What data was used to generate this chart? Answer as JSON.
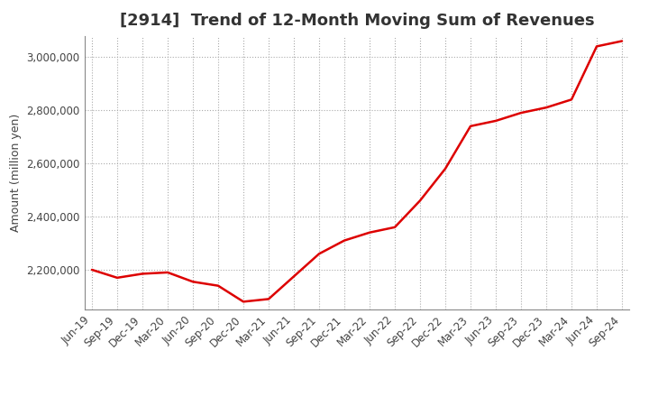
{
  "title": "[2914]  Trend of 12-Month Moving Sum of Revenues",
  "ylabel": "Amount (million yen)",
  "background_color": "#ffffff",
  "grid_color": "#aaaaaa",
  "line_color": "#dd0000",
  "x_labels": [
    "Jun-19",
    "Sep-19",
    "Dec-19",
    "Mar-20",
    "Jun-20",
    "Sep-20",
    "Dec-20",
    "Mar-21",
    "Jun-21",
    "Sep-21",
    "Dec-21",
    "Mar-22",
    "Jun-22",
    "Sep-22",
    "Dec-22",
    "Mar-23",
    "Jun-23",
    "Sep-23",
    "Dec-23",
    "Mar-24",
    "Jun-24",
    "Sep-24"
  ],
  "y_values": [
    2200000,
    2170000,
    2185000,
    2190000,
    2155000,
    2140000,
    2080000,
    2090000,
    2175000,
    2260000,
    2310000,
    2340000,
    2360000,
    2460000,
    2580000,
    2740000,
    2760000,
    2790000,
    2810000,
    2840000,
    3040000,
    3060000
  ],
  "ylim_min": 2050000,
  "ylim_max": 3080000,
  "yticks": [
    2200000,
    2400000,
    2600000,
    2800000,
    3000000
  ],
  "title_fontsize": 13,
  "label_fontsize": 9,
  "tick_fontsize": 8.5
}
